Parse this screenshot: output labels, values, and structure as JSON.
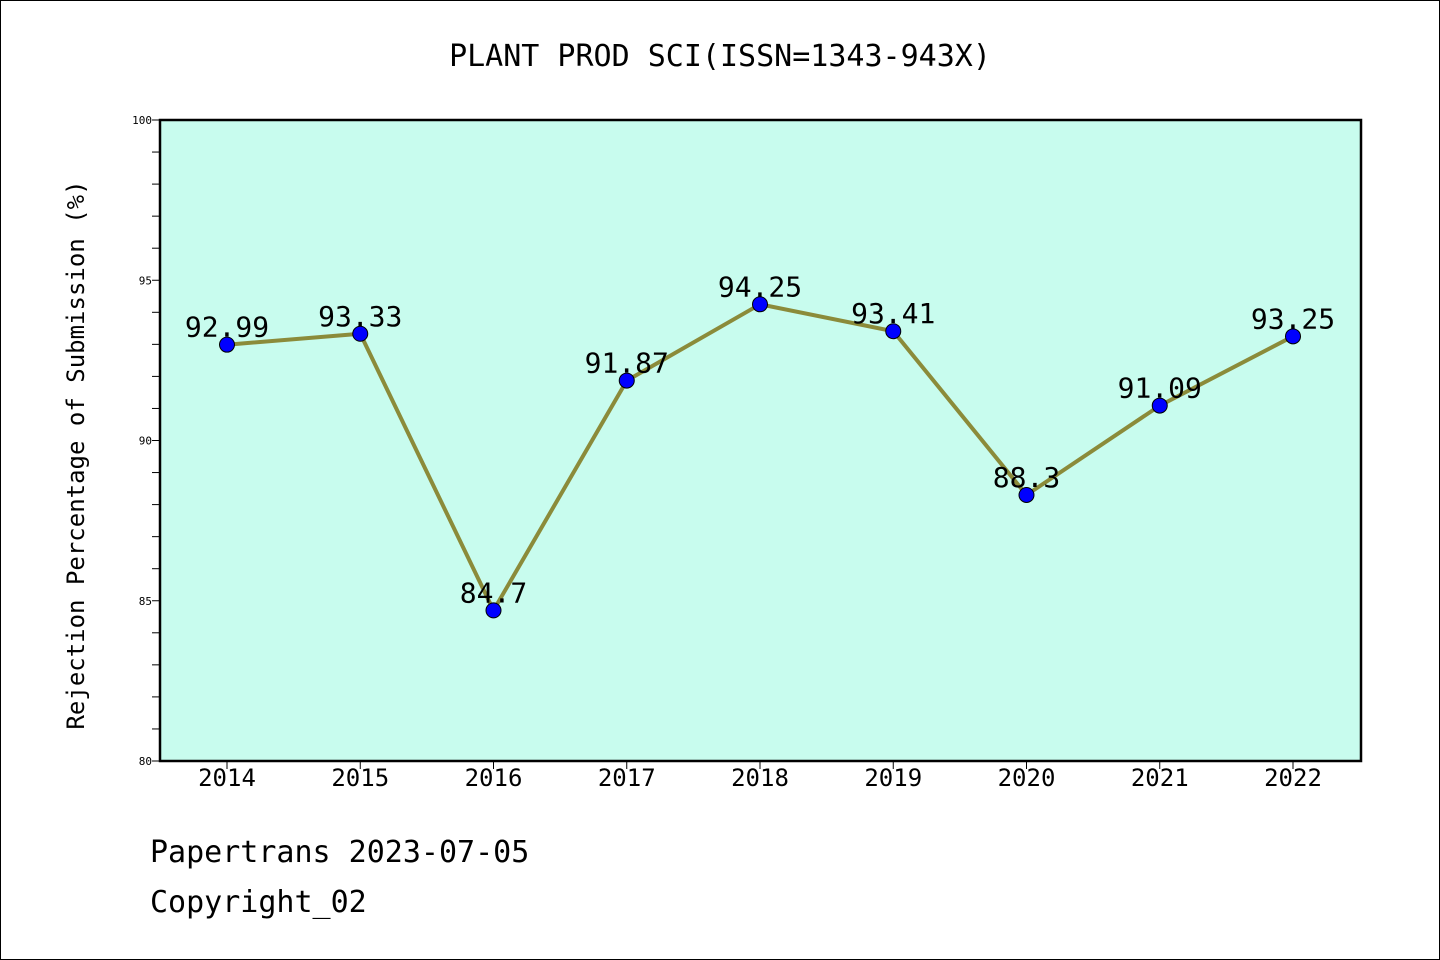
{
  "chart_data": {
    "type": "line",
    "title": "PLANT PROD SCI(ISSN=1343-943X)",
    "xlabel": "",
    "ylabel": "Rejection Percentage of Submission (%)",
    "categories": [
      "2014",
      "2015",
      "2016",
      "2017",
      "2018",
      "2019",
      "2020",
      "2021",
      "2022"
    ],
    "series": [
      {
        "values": [
          92.99,
          93.33,
          84.7,
          91.87,
          94.25,
          93.41,
          88.3,
          91.09,
          93.25
        ],
        "labels": [
          "92.99",
          "93.33",
          "84.7",
          "91.87",
          "94.25",
          "93.41",
          "88.3",
          "91.09",
          "93.25"
        ],
        "line_color": "#8b8b3a",
        "marker_color": "#0000ff"
      }
    ],
    "ylim": [
      80,
      100
    ],
    "yticks": [
      "80",
      "85",
      "90",
      "95",
      "100"
    ],
    "plot_background": "#c8fcee",
    "grid": false,
    "legend": "none"
  },
  "footer": {
    "line1": "Papertrans 2023-07-05",
    "line2": "Copyright_02"
  }
}
